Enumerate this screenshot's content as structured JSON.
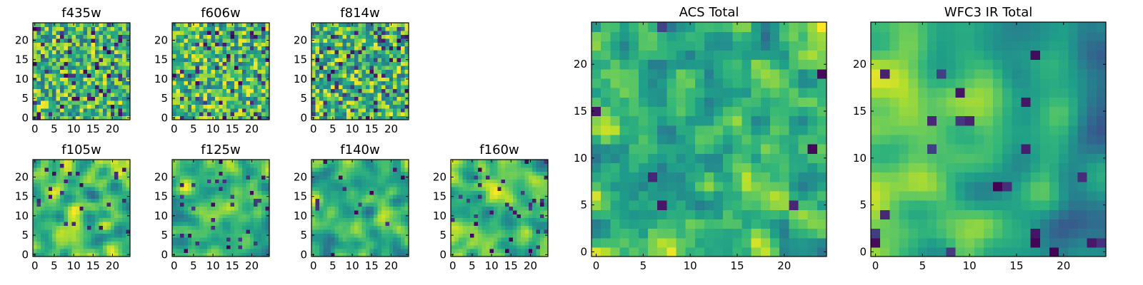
{
  "chart_data": [
    {
      "type": "heatmap",
      "title": "f435w",
      "size": 25,
      "colormap": "viridis",
      "x_ticks": [
        0,
        5,
        10,
        15,
        20
      ],
      "y_ticks": [
        0,
        5,
        10,
        15,
        20
      ],
      "texture": {
        "seed": 11,
        "smooth": 0.05,
        "dark": 0.08
      }
    },
    {
      "type": "heatmap",
      "title": "f606w",
      "size": 25,
      "colormap": "viridis",
      "x_ticks": [
        0,
        5,
        10,
        15,
        20
      ],
      "y_ticks": [
        0,
        5,
        10,
        15,
        20
      ],
      "texture": {
        "seed": 23,
        "smooth": 0.05,
        "dark": 0.08
      }
    },
    {
      "type": "heatmap",
      "title": "f814w",
      "size": 25,
      "colormap": "viridis",
      "x_ticks": [
        0,
        5,
        10,
        15,
        20
      ],
      "y_ticks": [
        0,
        5,
        10,
        15,
        20
      ],
      "texture": {
        "seed": 37,
        "smooth": 0.05,
        "dark": 0.08
      }
    },
    {
      "type": "heatmap",
      "title": "f105w",
      "size": 25,
      "colormap": "viridis",
      "x_ticks": [
        0,
        5,
        10,
        15,
        20
      ],
      "y_ticks": [
        0,
        5,
        10,
        15,
        20
      ],
      "texture": {
        "seed": 41,
        "smooth": 0.6,
        "dark": 0.03
      }
    },
    {
      "type": "heatmap",
      "title": "f125w",
      "size": 25,
      "colormap": "viridis",
      "x_ticks": [
        0,
        5,
        10,
        15,
        20
      ],
      "y_ticks": [
        0,
        5,
        10,
        15,
        20
      ],
      "texture": {
        "seed": 53,
        "smooth": 0.55,
        "dark": 0.05
      }
    },
    {
      "type": "heatmap",
      "title": "f140w",
      "size": 25,
      "colormap": "viridis",
      "x_ticks": [
        0,
        5,
        10,
        15,
        20
      ],
      "y_ticks": [
        0,
        5,
        10,
        15,
        20
      ],
      "texture": {
        "seed": 67,
        "smooth": 0.55,
        "dark": 0.05
      }
    },
    {
      "type": "heatmap",
      "title": "f160w",
      "size": 25,
      "colormap": "viridis",
      "x_ticks": [
        0,
        5,
        10,
        15,
        20
      ],
      "y_ticks": [
        0,
        5,
        10,
        15,
        20
      ],
      "texture": {
        "seed": 79,
        "smooth": 0.5,
        "dark": 0.06
      }
    },
    {
      "type": "heatmap",
      "title": "ACS Total",
      "size": 25,
      "colormap": "viridis",
      "x_ticks": [
        0,
        5,
        10,
        15,
        20
      ],
      "y_ticks": [
        0,
        5,
        10,
        15,
        20
      ],
      "texture": {
        "seed": 83,
        "smooth": 0.2,
        "dark": 0.02
      }
    },
    {
      "type": "heatmap",
      "title": "WFC3 IR Total",
      "size": 25,
      "colormap": "viridis",
      "x_ticks": [
        0,
        5,
        10,
        15,
        20
      ],
      "y_ticks": [
        0,
        5,
        10,
        15,
        20
      ],
      "texture": {
        "seed": 97,
        "smooth": 0.75,
        "dark": 0.04,
        "gradient": 0.9
      }
    }
  ]
}
